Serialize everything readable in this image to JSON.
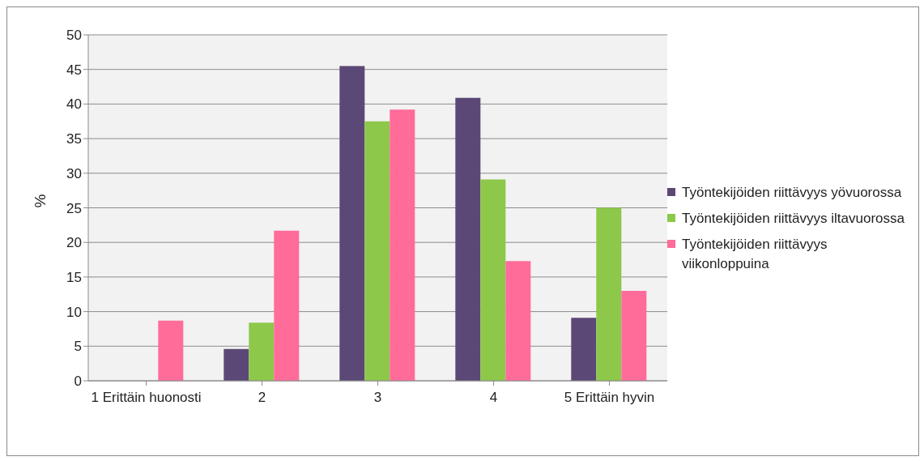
{
  "chart_data": {
    "type": "bar",
    "ylabel": "%",
    "categories": [
      "1 Erittäin huonosti",
      "2",
      "3",
      "4",
      "5 Erittäin hyvin"
    ],
    "series": [
      {
        "name": "Työntekijöiden riittävyys yövuorossa",
        "color": "#5c4876",
        "values": [
          0,
          4.6,
          45.5,
          40.9,
          9.1
        ]
      },
      {
        "name": "Työntekijöiden riittävyys iltavuorossa",
        "color": "#8dc84a",
        "values": [
          0,
          8.4,
          37.5,
          29.1,
          25.0
        ]
      },
      {
        "name": "Työntekijöiden riittävyys viikonloppuina",
        "color": "#ff6c99",
        "values": [
          8.7,
          21.7,
          39.2,
          17.3,
          13.0
        ]
      }
    ],
    "ylim": [
      0,
      50
    ],
    "yticks": [
      0,
      5,
      10,
      15,
      20,
      25,
      30,
      35,
      40,
      45,
      50
    ],
    "grid": "y",
    "legend": "right"
  }
}
